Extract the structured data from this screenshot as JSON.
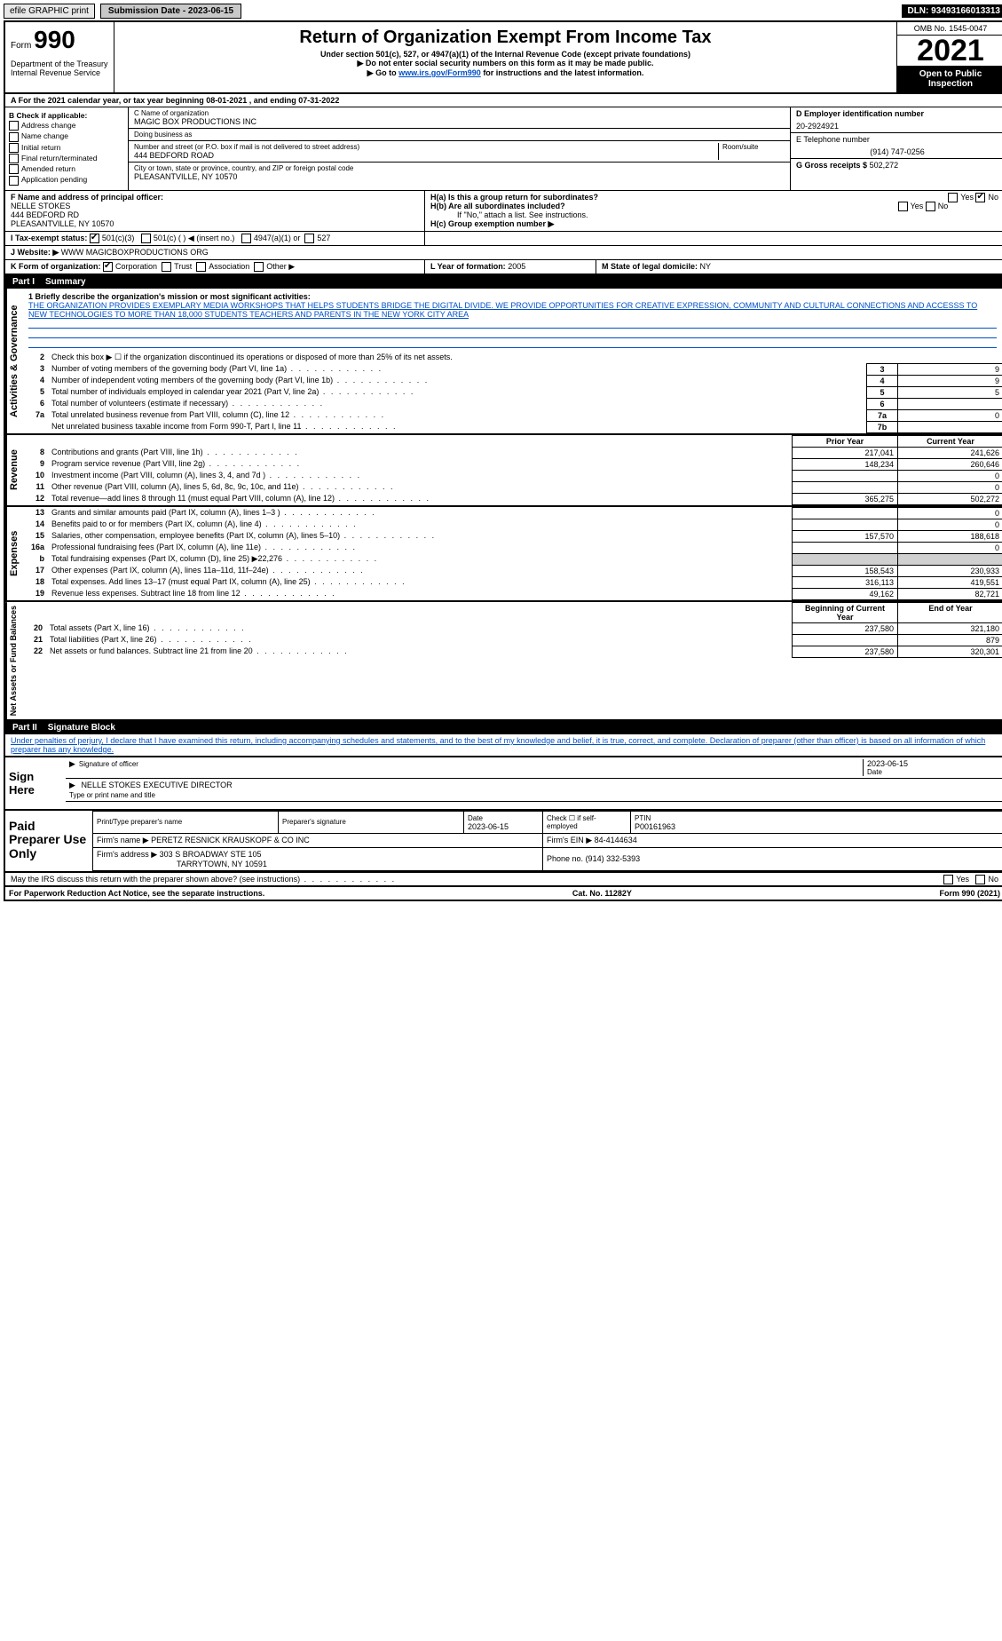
{
  "topbar": {
    "efile": "efile GRAPHIC print",
    "submission_label": "Submission Date - 2023-06-15",
    "dln": "DLN: 93493166013313"
  },
  "header": {
    "form_prefix": "Form",
    "form_number": "990",
    "title": "Return of Organization Exempt From Income Tax",
    "subtitle1": "Under section 501(c), 527, or 4947(a)(1) of the Internal Revenue Code (except private foundations)",
    "subtitle2": "▶ Do not enter social security numbers on this form as it may be made public.",
    "subtitle3_pre": "▶ Go to ",
    "subtitle3_link": "www.irs.gov/Form990",
    "subtitle3_post": " for instructions and the latest information.",
    "omb": "OMB No. 1545-0047",
    "year": "2021",
    "inspection": "Open to Public Inspection",
    "dept": "Department of the Treasury Internal Revenue Service"
  },
  "lineA": "A For the 2021 calendar year, or tax year beginning 08-01-2021    , and ending 07-31-2022",
  "boxB": {
    "label": "B Check if applicable:",
    "items": [
      "Address change",
      "Name change",
      "Initial return",
      "Final return/terminated",
      "Amended return",
      "Application pending"
    ]
  },
  "boxC": {
    "name_label": "C Name of organization",
    "name": "MAGIC BOX PRODUCTIONS INC",
    "dba_label": "Doing business as",
    "dba": "",
    "addr_label": "Number and street (or P.O. box if mail is not delivered to street address)",
    "room_label": "Room/suite",
    "addr": "444 BEDFORD ROAD",
    "city_label": "City or town, state or province, country, and ZIP or foreign postal code",
    "city": "PLEASANTVILLE, NY  10570"
  },
  "boxD": {
    "label": "D Employer identification number",
    "value": "20-2924921"
  },
  "boxE": {
    "label": "E Telephone number",
    "value": "(914) 747-0256"
  },
  "boxG": {
    "label": "G Gross receipts $",
    "value": "502,272"
  },
  "boxF": {
    "label": "F  Name and address of principal officer:",
    "name": "NELLE STOKES",
    "addr": "444 BEDFORD RD",
    "city": "PLEASANTVILLE, NY  10570"
  },
  "boxH": {
    "a_label": "H(a)  Is this a group return for subordinates?",
    "a_yes": "Yes",
    "a_no": "No",
    "b_label": "H(b)  Are all subordinates included?",
    "b_note": "If \"No,\" attach a list. See instructions.",
    "c_label": "H(c)  Group exemption number ▶"
  },
  "boxI": {
    "label": "I      Tax-exempt status:",
    "o1": "501(c)(3)",
    "o2": "501(c) (   ) ◀ (insert no.)",
    "o3": "4947(a)(1) or",
    "o4": "527"
  },
  "boxJ": {
    "label": "J     Website: ▶",
    "value": "WWW MAGICBOXPRODUCTIONS ORG"
  },
  "boxK": {
    "label": "K Form of organization:",
    "o1": "Corporation",
    "o2": "Trust",
    "o3": "Association",
    "o4": "Other ▶"
  },
  "boxL": {
    "label": "L Year of formation:",
    "value": "2005"
  },
  "boxM": {
    "label": "M State of legal domicile:",
    "value": "NY"
  },
  "partI": {
    "num": "Part I",
    "title": "Summary",
    "line1_label": "1  Briefly describe the organization's mission or most significant activities:",
    "mission": "THE ORGANIZATION PROVIDES EXEMPLARY MEDIA WORKSHOPS THAT HELPS STUDENTS BRIDGE THE DIGITAL DIVIDE. WE PROVIDE OPPORTUNITIES FOR CREATIVE EXPRESSION, COMMUNITY AND CULTURAL CONNECTIONS AND ACCESSS TO NEW TECHNOLOGIES TO MORE THAN 18,000 STUDENTS TEACHERS AND PARENTS IN THE NEW YORK CITY AREA",
    "line2": "Check this box ▶ ☐  if the organization discontinued its operations or disposed of more than 25% of its net assets.",
    "vlabel_gov": "Activities & Governance",
    "vlabel_rev": "Revenue",
    "vlabel_exp": "Expenses",
    "vlabel_net": "Net Assets or Fund Balances",
    "gov_rows": [
      {
        "n": "3",
        "t": "Number of voting members of the governing body (Part VI, line 1a)",
        "bn": "3",
        "v": "9"
      },
      {
        "n": "4",
        "t": "Number of independent voting members of the governing body (Part VI, line 1b)",
        "bn": "4",
        "v": "9"
      },
      {
        "n": "5",
        "t": "Total number of individuals employed in calendar year 2021 (Part V, line 2a)",
        "bn": "5",
        "v": "5"
      },
      {
        "n": "6",
        "t": "Total number of volunteers (estimate if necessary)",
        "bn": "6",
        "v": ""
      },
      {
        "n": "7a",
        "t": "Total unrelated business revenue from Part VIII, column (C), line 12",
        "bn": "7a",
        "v": "0"
      },
      {
        "n": "",
        "t": "Net unrelated business taxable income from Form 990-T, Part I, line 11",
        "bn": "7b",
        "v": ""
      }
    ],
    "col_prior": "Prior Year",
    "col_current": "Current Year",
    "rev_rows": [
      {
        "n": "8",
        "t": "Contributions and grants (Part VIII, line 1h)",
        "p": "217,041",
        "c": "241,626"
      },
      {
        "n": "9",
        "t": "Program service revenue (Part VIII, line 2g)",
        "p": "148,234",
        "c": "260,646"
      },
      {
        "n": "10",
        "t": "Investment income (Part VIII, column (A), lines 3, 4, and 7d )",
        "p": "",
        "c": "0"
      },
      {
        "n": "11",
        "t": "Other revenue (Part VIII, column (A), lines 5, 6d, 8c, 9c, 10c, and 11e)",
        "p": "",
        "c": "0"
      },
      {
        "n": "12",
        "t": "Total revenue—add lines 8 through 11 (must equal Part VIII, column (A), line 12)",
        "p": "365,275",
        "c": "502,272"
      }
    ],
    "exp_rows": [
      {
        "n": "13",
        "t": "Grants and similar amounts paid (Part IX, column (A), lines 1–3 )",
        "p": "",
        "c": "0"
      },
      {
        "n": "14",
        "t": "Benefits paid to or for members (Part IX, column (A), line 4)",
        "p": "",
        "c": "0"
      },
      {
        "n": "15",
        "t": "Salaries, other compensation, employee benefits (Part IX, column (A), lines 5–10)",
        "p": "157,570",
        "c": "188,618"
      },
      {
        "n": "16a",
        "t": "Professional fundraising fees (Part IX, column (A), line 11e)",
        "p": "",
        "c": "0"
      },
      {
        "n": "b",
        "t": "Total fundraising expenses (Part IX, column (D), line 25) ▶22,276",
        "p": "shade",
        "c": "shade"
      },
      {
        "n": "17",
        "t": "Other expenses (Part IX, column (A), lines 11a–11d, 11f–24e)",
        "p": "158,543",
        "c": "230,933"
      },
      {
        "n": "18",
        "t": "Total expenses. Add lines 13–17 (must equal Part IX, column (A), line 25)",
        "p": "316,113",
        "c": "419,551"
      },
      {
        "n": "19",
        "t": "Revenue less expenses. Subtract line 18 from line 12",
        "p": "49,162",
        "c": "82,721"
      }
    ],
    "col_begin": "Beginning of Current Year",
    "col_end": "End of Year",
    "net_rows": [
      {
        "n": "20",
        "t": "Total assets (Part X, line 16)",
        "p": "237,580",
        "c": "321,180"
      },
      {
        "n": "21",
        "t": "Total liabilities (Part X, line 26)",
        "p": "",
        "c": "879"
      },
      {
        "n": "22",
        "t": "Net assets or fund balances. Subtract line 21 from line 20",
        "p": "237,580",
        "c": "320,301"
      }
    ]
  },
  "partII": {
    "num": "Part II",
    "title": "Signature Block",
    "declaration": "Under penalties of perjury, I declare that I have examined this return, including accompanying schedules and statements, and to the best of my knowledge and belief, it is true, correct, and complete. Declaration of preparer (other than officer) is based on all information of which preparer has any knowledge.",
    "sign_here": "Sign Here",
    "sig_officer": "Signature of officer",
    "sig_date": "2023-06-15",
    "date_label": "Date",
    "name_title": "NELLE STOKES  EXECUTIVE DIRECTOR",
    "name_title_label": "Type or print name and title"
  },
  "paid": {
    "label": "Paid Preparer Use Only",
    "h_name": "Print/Type preparer's name",
    "h_sig": "Preparer's signature",
    "h_date": "Date",
    "date": "2023-06-15",
    "h_check": "Check ☐ if self-employed",
    "h_ptin": "PTIN",
    "ptin": "P00161963",
    "firm_name_label": "Firm's name    ▶",
    "firm_name": "PERETZ RESNICK KRAUSKOPF & CO INC",
    "firm_ein_label": "Firm's EIN ▶",
    "firm_ein": "84-4144634",
    "firm_addr_label": "Firm's address ▶",
    "firm_addr1": "303 S BROADWAY STE 105",
    "firm_addr2": "TARRYTOWN, NY  10591",
    "phone_label": "Phone no.",
    "phone": "(914) 332-5393"
  },
  "footer": {
    "q": "May the IRS discuss this return with the preparer shown above? (see instructions)",
    "yes": "Yes",
    "no": "No",
    "pra": "For Paperwork Reduction Act Notice, see the separate instructions.",
    "cat": "Cat. No. 11282Y",
    "form": "Form 990 (2021)"
  }
}
